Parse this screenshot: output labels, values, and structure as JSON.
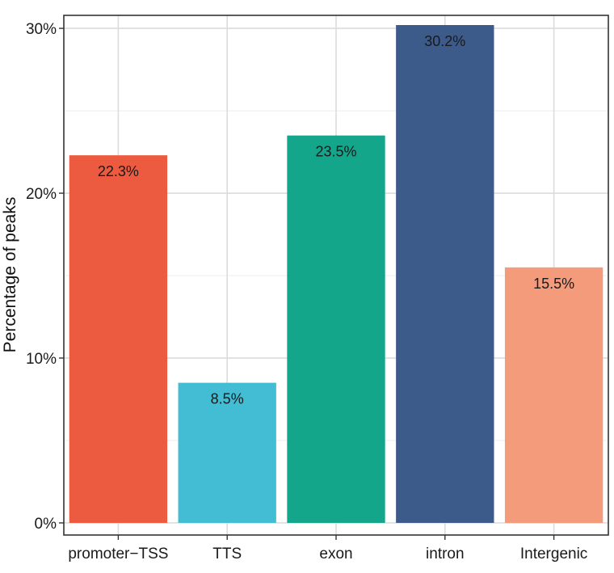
{
  "chart_data": {
    "type": "bar",
    "title": "",
    "xlabel": "",
    "ylabel": "Percentage of peaks",
    "categories": [
      "promoter−TSS",
      "TTS",
      "exon",
      "intron",
      "Intergenic"
    ],
    "values": [
      22.3,
      8.5,
      23.5,
      30.2,
      15.5
    ],
    "data_labels": [
      "22.3%",
      "8.5%",
      "23.5%",
      "30.2%",
      "15.5%"
    ],
    "colors": [
      "#EC5B40",
      "#42BDD3",
      "#13A68B",
      "#3C5A8A",
      "#F49B7C"
    ],
    "y_ticks": [
      0,
      10,
      20,
      30
    ],
    "y_tick_labels": [
      "0%",
      "10%",
      "20%",
      "30%"
    ],
    "ylim": [
      0,
      30.2
    ],
    "grid": true,
    "legend": "none"
  }
}
